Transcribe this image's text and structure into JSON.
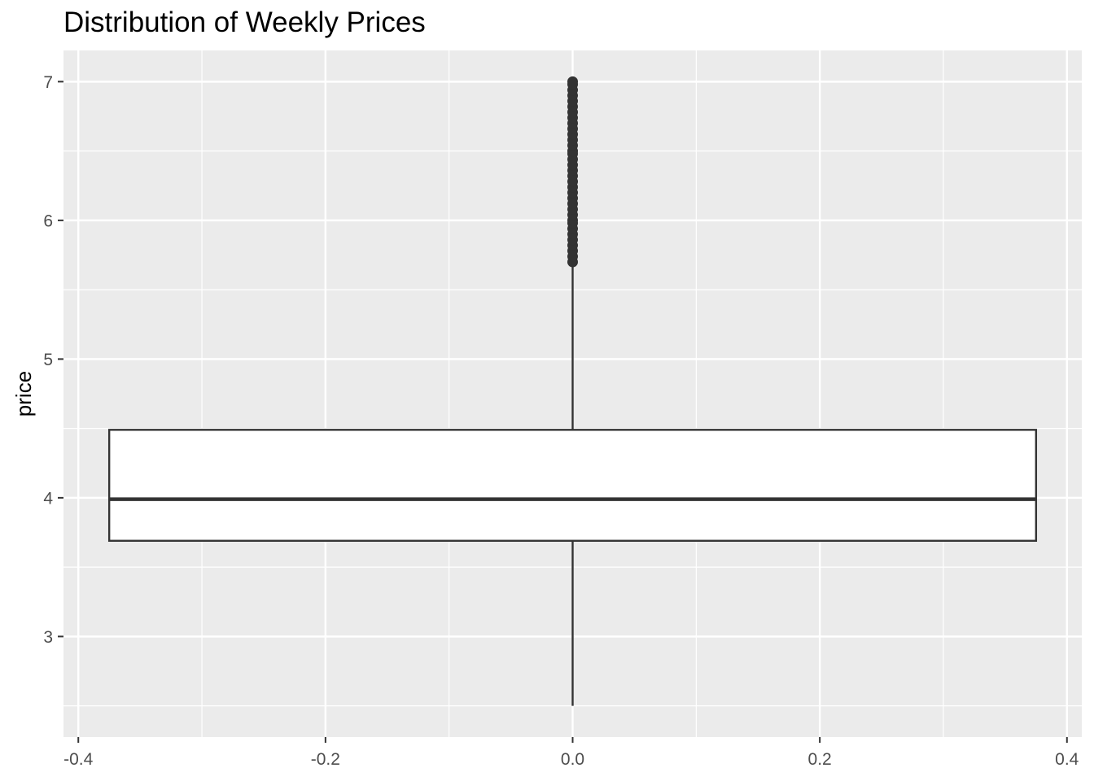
{
  "chart_data": {
    "type": "boxplot",
    "title": "Distribution of Weekly Prices",
    "xlabel": "",
    "ylabel": "price",
    "xlim": [
      -0.4,
      0.4
    ],
    "ylim": [
      2.5,
      7.0
    ],
    "x_ticks": [
      -0.4,
      -0.2,
      0.0,
      0.2,
      0.4
    ],
    "x_tick_labels": [
      "-0.4",
      "-0.2",
      "0.0",
      "0.2",
      "0.4"
    ],
    "y_ticks": [
      3,
      4,
      5,
      6,
      7
    ],
    "y_tick_labels": [
      "3",
      "4",
      "5",
      "6",
      "7"
    ],
    "grid": true,
    "legend": "none",
    "box": {
      "x": 0.0,
      "width": 0.75,
      "min": 2.5,
      "q1": 3.69,
      "median": 3.99,
      "q3": 4.49,
      "whisker_low": 2.5,
      "whisker_high": 5.69,
      "outliers": [
        5.7,
        5.74,
        5.78,
        5.82,
        5.86,
        5.9,
        5.94,
        5.98,
        6.0,
        6.04,
        6.08,
        6.12,
        6.16,
        6.2,
        6.24,
        6.28,
        6.32,
        6.36,
        6.4,
        6.44,
        6.48,
        6.5,
        6.54,
        6.58,
        6.62,
        6.66,
        6.7,
        6.74,
        6.78,
        6.82,
        6.86,
        6.9,
        6.94,
        6.98,
        7.0
      ]
    },
    "colors": {
      "panel_background": "#EBEBEB",
      "grid_major": "#FFFFFF",
      "box_fill": "#FFFFFF",
      "box_line": "#333333",
      "tick_text": "#4D4D4D",
      "axis_title": "#000000"
    }
  }
}
